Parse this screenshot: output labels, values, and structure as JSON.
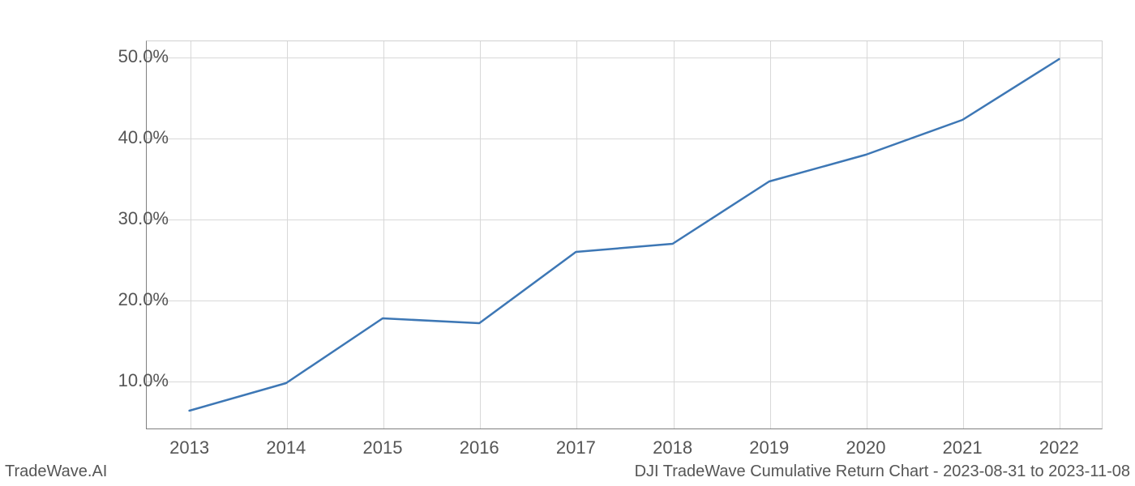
{
  "chart": {
    "type": "line",
    "x_years": [
      2013,
      2014,
      2015,
      2016,
      2017,
      2018,
      2019,
      2020,
      2021,
      2022
    ],
    "y_values_pct": [
      6.3,
      9.7,
      17.7,
      17.1,
      25.9,
      26.9,
      34.6,
      37.9,
      42.2,
      49.7
    ],
    "line_color": "#3d77b5",
    "line_width": 2.5,
    "background_color": "#ffffff",
    "grid_color": "#d8d8d8",
    "axis_color": "#808080",
    "tick_label_color": "#555555",
    "tick_label_fontsize": 22,
    "footer_fontsize": 20,
    "x_axis": {
      "ticks": [
        2013,
        2014,
        2015,
        2016,
        2017,
        2018,
        2019,
        2020,
        2021,
        2022
      ],
      "tick_labels": [
        "2013",
        "2014",
        "2015",
        "2016",
        "2017",
        "2018",
        "2019",
        "2020",
        "2021",
        "2022"
      ],
      "xlim": [
        2012.55,
        2022.45
      ]
    },
    "y_axis": {
      "ticks": [
        10,
        20,
        30,
        40,
        50
      ],
      "tick_labels": [
        "10.0%",
        "20.0%",
        "30.0%",
        "40.0%",
        "50.0%"
      ],
      "ylim": [
        4.0,
        52.0
      ]
    }
  },
  "footer": {
    "left": "TradeWave.AI",
    "right": "DJI TradeWave Cumulative Return Chart - 2023-08-31 to 2023-11-08"
  }
}
